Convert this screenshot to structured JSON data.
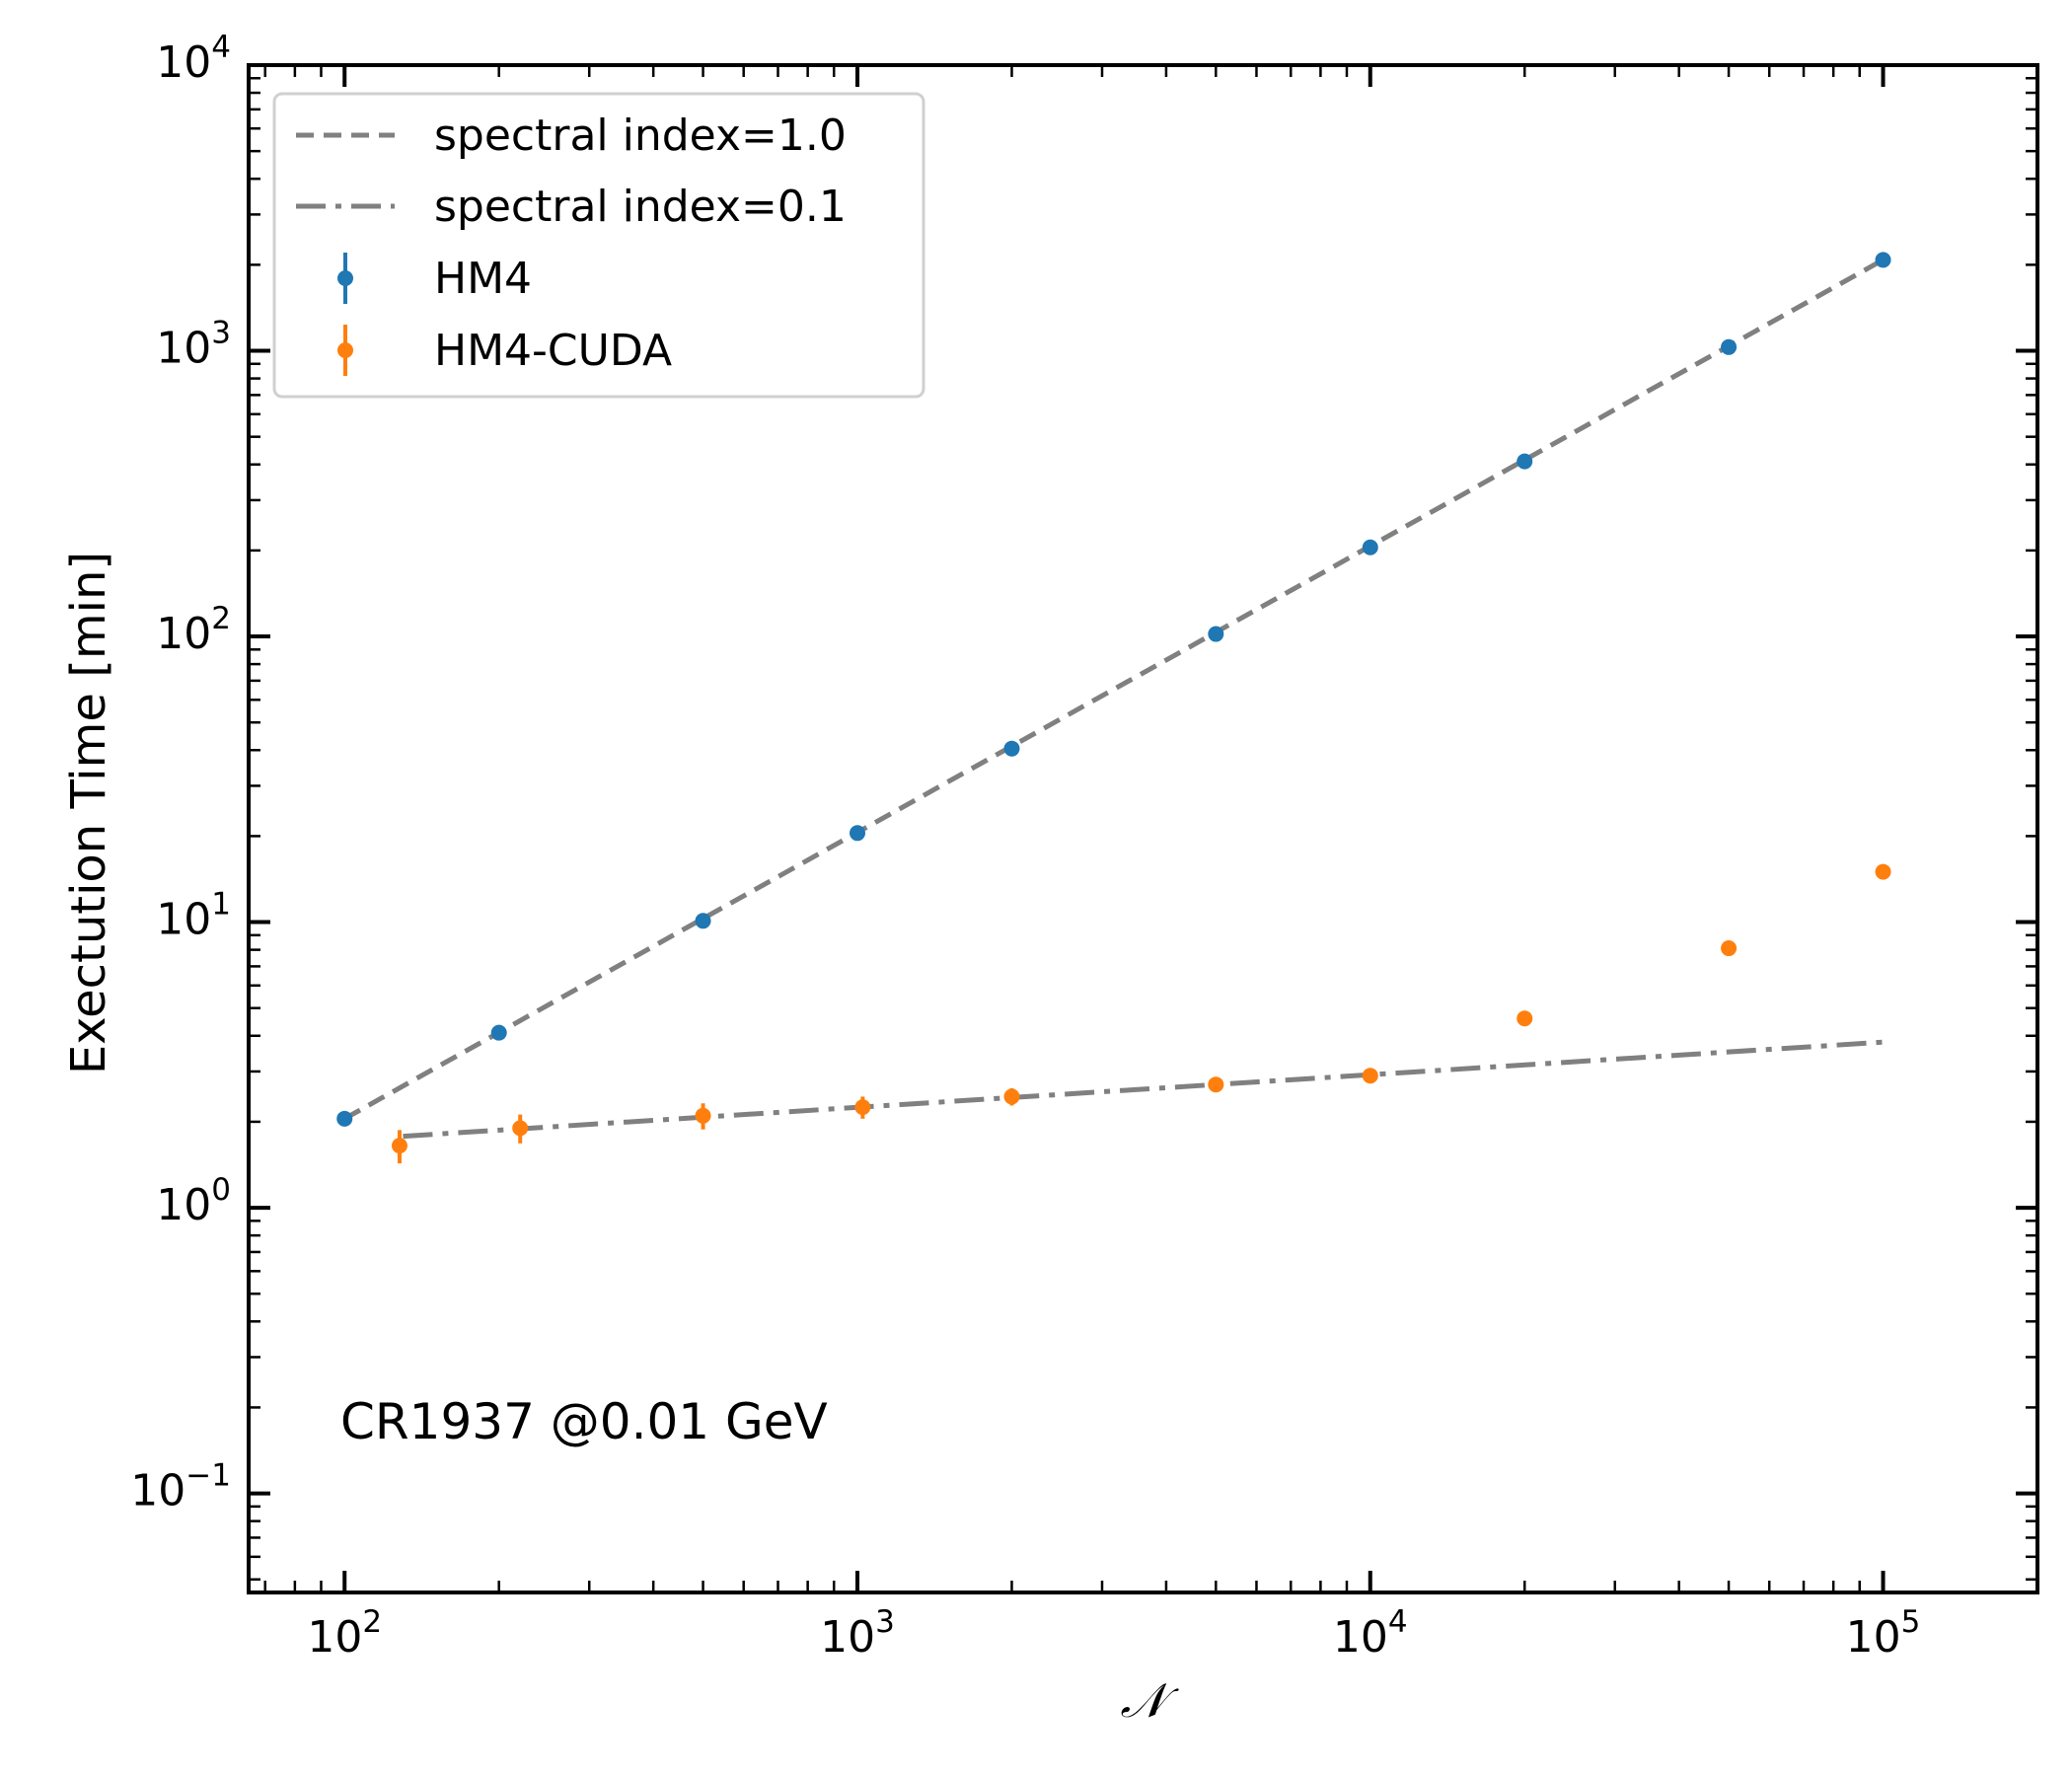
{
  "chart_data": {
    "type": "scatter",
    "xlabel": "𝒩",
    "ylabel": "Exectution Time [min]",
    "xscale": "log",
    "yscale": "log",
    "xlim": [
      65,
      200000
    ],
    "ylim": [
      0.045,
      10000
    ],
    "x_ticks": [
      {
        "base": "10",
        "exp": "2"
      },
      {
        "base": "10",
        "exp": "3"
      },
      {
        "base": "10",
        "exp": "4"
      },
      {
        "base": "10",
        "exp": "5"
      }
    ],
    "y_ticks": [
      {
        "base": "10",
        "exp": "−1"
      },
      {
        "base": "10",
        "exp": "0"
      },
      {
        "base": "10",
        "exp": "1"
      },
      {
        "base": "10",
        "exp": "2"
      },
      {
        "base": "10",
        "exp": "3"
      },
      {
        "base": "10",
        "exp": "4"
      }
    ],
    "grid": false,
    "legend_position": "top-left",
    "annotation": "CR1937 @0.01 GeV",
    "lines": [
      {
        "name": "spectral index=1.0",
        "style": "dashed",
        "color": "#808080",
        "x": [
          100,
          100000
        ],
        "y": [
          2.05,
          2080
        ]
      },
      {
        "name": "spectral index=0.1",
        "style": "dashdot",
        "color": "#808080",
        "x": [
          130,
          100000
        ],
        "y": [
          1.78,
          3.8
        ]
      }
    ],
    "series": [
      {
        "name": "HM4",
        "color": "#1f77b4",
        "x": [
          100,
          200,
          500,
          1000,
          2000,
          5000,
          10000,
          20000,
          50000,
          100000
        ],
        "y": [
          2.05,
          4.1,
          10.1,
          20.5,
          40.5,
          102,
          205,
          410,
          1030,
          2080
        ],
        "yerr": [
          0,
          0,
          0,
          0,
          0,
          0,
          0,
          0,
          0,
          0
        ]
      },
      {
        "name": "HM4-CUDA",
        "color": "#ff7f0e",
        "x": [
          128,
          220,
          500,
          1024,
          2000,
          5000,
          10000,
          20000,
          50000,
          100000
        ],
        "y": [
          1.65,
          1.9,
          2.1,
          2.25,
          2.45,
          2.7,
          2.9,
          4.6,
          8.1,
          15
        ],
        "yerr": [
          0.22,
          0.22,
          0.22,
          0.2,
          0.17,
          0.15,
          0.12,
          0,
          0,
          0
        ]
      }
    ]
  }
}
